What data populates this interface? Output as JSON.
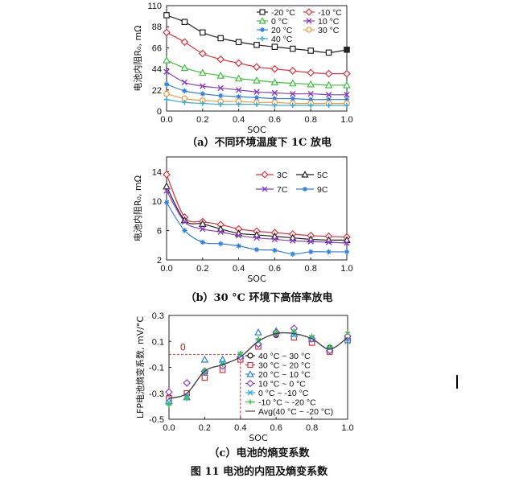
{
  "figure_caption": "图 11  电池的内阻及熵变系数",
  "chart_data": [
    {
      "type": "line",
      "caption": "（a）不同环境温度下 1C 放电",
      "xlabel": "SOC",
      "ylabel": "电池内阻R₀, mΩ",
      "xlim": [
        0,
        1
      ],
      "ylim": [
        0,
        110
      ],
      "xticks": [
        "0.0",
        "0.2",
        "0.4",
        "0.6",
        "0.8",
        "1.0"
      ],
      "yticks": [
        "0",
        "22",
        "44",
        "66",
        "88",
        "110"
      ],
      "x": [
        0,
        0.1,
        0.2,
        0.3,
        0.4,
        0.5,
        0.6,
        0.7,
        0.8,
        0.9,
        1.0
      ],
      "legend_placement": "top-right",
      "series": [
        {
          "name": "-20 °C",
          "color": "#222222",
          "marker": "square-open",
          "values": [
            100,
            93,
            82,
            76,
            72,
            69,
            67,
            65,
            63,
            61,
            64
          ]
        },
        {
          "name": "-10 °C",
          "color": "#e0303a",
          "marker": "diamond-open",
          "values": [
            82,
            72,
            60,
            54,
            50,
            46,
            44,
            42,
            40,
            39,
            39
          ]
        },
        {
          "name": "0 °C",
          "color": "#3cc23c",
          "marker": "triangle-open",
          "values": [
            53,
            45,
            40,
            37,
            34,
            32,
            30,
            29,
            28,
            27,
            27
          ]
        },
        {
          "name": "10 °C",
          "color": "#8a40c0",
          "marker": "x",
          "values": [
            41,
            30,
            26,
            24,
            22,
            20,
            19,
            18,
            18,
            17,
            17
          ]
        },
        {
          "name": "20 °C",
          "color": "#2f7fe0",
          "marker": "star",
          "values": [
            28,
            21,
            18,
            16,
            15,
            14,
            13,
            13,
            12,
            12,
            12
          ]
        },
        {
          "name": "30 °C",
          "color": "#f59a3c",
          "marker": "circle-open",
          "values": [
            18,
            13,
            11,
            10,
            10,
            9,
            9,
            8,
            8,
            8,
            8
          ]
        },
        {
          "name": "40 °C",
          "color": "#2ab0d8",
          "marker": "plus",
          "values": [
            12,
            9,
            8,
            7,
            7,
            7,
            6,
            6,
            6,
            6,
            6
          ]
        }
      ]
    },
    {
      "type": "line",
      "caption": "（b）30 °C 环境下高倍率放电",
      "xlabel": "SOC",
      "ylabel": "电池内阻R₀, mΩ",
      "xlim": [
        0,
        1
      ],
      "ylim": [
        2,
        16
      ],
      "xticks": [
        "0.0",
        "0.2",
        "0.4",
        "0.6",
        "0.8",
        "1.0"
      ],
      "yticks": [
        "2",
        "6",
        "10",
        "14"
      ],
      "x": [
        0,
        0.1,
        0.2,
        0.3,
        0.4,
        0.5,
        0.6,
        0.7,
        0.8,
        0.9,
        1.0
      ],
      "legend_placement": "top-right",
      "series": [
        {
          "name": "3C",
          "color": "#e0303a",
          "marker": "diamond-open",
          "values": [
            13.6,
            7.8,
            7.2,
            6.8,
            6.2,
            5.9,
            5.7,
            5.5,
            5.3,
            5.2,
            5.1
          ]
        },
        {
          "name": "5C",
          "color": "#222222",
          "marker": "triangle-open",
          "values": [
            12.0,
            7.4,
            6.9,
            6.2,
            5.6,
            5.4,
            5.2,
            5.0,
            4.8,
            4.7,
            4.7
          ]
        },
        {
          "name": "7C",
          "color": "#8a40c0",
          "marker": "x",
          "values": [
            11.4,
            7.2,
            6.2,
            5.8,
            5.3,
            5.0,
            4.8,
            4.6,
            4.5,
            4.4,
            4.3
          ]
        },
        {
          "name": "9C",
          "color": "#2f7fe0",
          "marker": "star",
          "values": [
            9.8,
            6.0,
            4.4,
            4.2,
            3.9,
            3.4,
            3.3,
            2.8,
            3.1,
            3.1,
            3.1
          ]
        }
      ]
    },
    {
      "type": "scatter",
      "caption": "（c）电池的熵变系数",
      "xlabel": "SOC",
      "ylabel": "LFP电池熵变系数, mV/°C",
      "xlim": [
        0,
        1
      ],
      "ylim": [
        -0.5,
        0.3
      ],
      "xticks": [
        "0.0",
        "0.2",
        "0.4",
        "0.6",
        "0.8",
        "1.0"
      ],
      "yticks": [
        "-0.5",
        "-0.3",
        "-0.1",
        "0.1",
        "0.3"
      ],
      "x": [
        0,
        0.1,
        0.2,
        0.3,
        0.4,
        0.5,
        0.6,
        0.7,
        0.8,
        0.9,
        1.0
      ],
      "annotation": {
        "text": "0",
        "x": 0.4,
        "y": 0
      },
      "legend_placement": "bottom-right",
      "series": [
        {
          "name": "40 °C ~ 30 °C",
          "color": "#222222",
          "marker": "circle-open",
          "values": [
            -0.33,
            -0.3,
            -0.15,
            -0.1,
            -0.03,
            0.07,
            0.15,
            0.14,
            0.11,
            0.05,
            0.12
          ]
        },
        {
          "name": "30 °C ~ 20 °C",
          "color": "#e0303a",
          "marker": "square-open",
          "values": [
            -0.34,
            -0.3,
            -0.18,
            -0.12,
            -0.04,
            0.06,
            0.16,
            0.13,
            0.09,
            0.02,
            0.11
          ]
        },
        {
          "name": "20 °C ~ 10 °C",
          "color": "#2f7fe0",
          "marker": "triangle-open",
          "values": [
            -0.36,
            -0.33,
            -0.04,
            -0.04,
            -0.01,
            0.17,
            0.18,
            0.16,
            0.12,
            0.04,
            0.13
          ]
        },
        {
          "name": "10 °C ~ 0 °C",
          "color": "#8a40c0",
          "marker": "diamond-open",
          "values": [
            -0.29,
            -0.22,
            -0.13,
            -0.09,
            -0.02,
            0.08,
            0.17,
            0.2,
            0.12,
            0.03,
            0.14
          ]
        },
        {
          "name": "0 °C ~ -10 °C",
          "color": "#2ab0d8",
          "marker": "x",
          "values": [
            -0.37,
            -0.32,
            -0.14,
            -0.06,
            0.0,
            0.1,
            0.16,
            0.15,
            0.13,
            0.05,
            0.1
          ]
        },
        {
          "name": "-10 °C ~ -20 °C",
          "color": "#3cc23c",
          "marker": "plus",
          "values": [
            -0.39,
            -0.34,
            -0.12,
            -0.08,
            0.01,
            0.12,
            0.17,
            0.18,
            0.14,
            0.06,
            0.17
          ]
        },
        {
          "name": "Avg(40 °C ~ -20 °C)",
          "color": "#444444",
          "marker": "line",
          "values": [
            -0.34,
            -0.3,
            -0.13,
            -0.08,
            -0.02,
            0.1,
            0.16,
            0.16,
            0.12,
            0.04,
            0.13
          ]
        }
      ]
    }
  ]
}
